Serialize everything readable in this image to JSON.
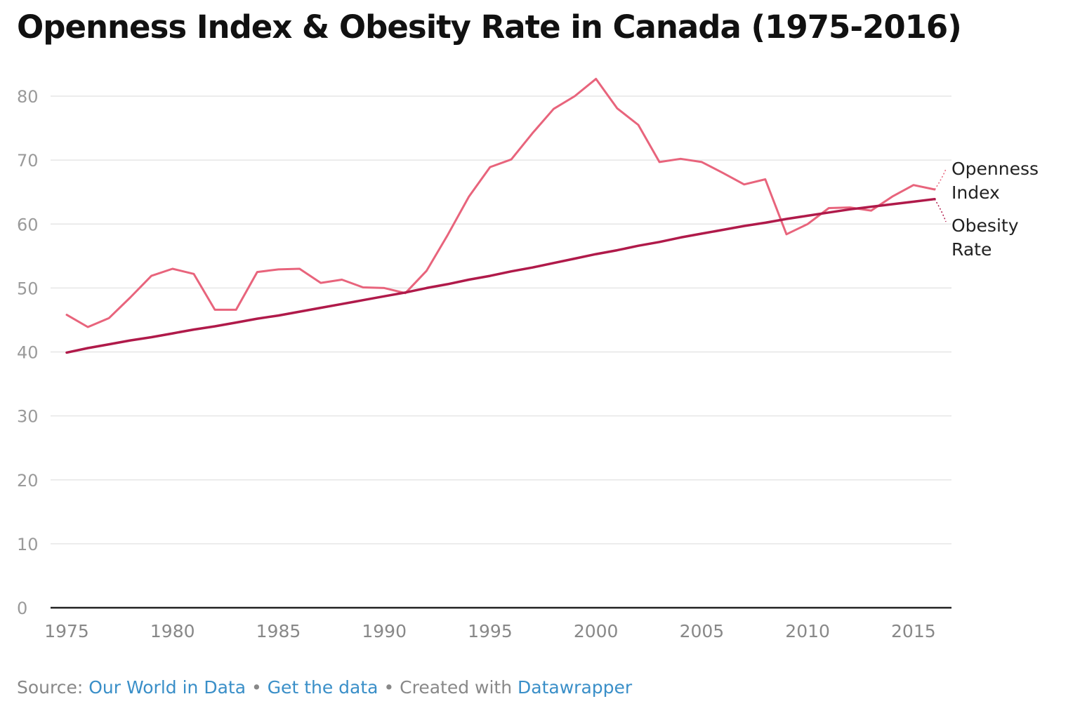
{
  "page": {
    "title": "Openness Index & Obesity Rate in Canada (1975-2016)"
  },
  "footer": {
    "source_label": "Source:",
    "source_link": "Our World in Data",
    "separator": "•",
    "data_link": "Get the data",
    "created_label": "Created with",
    "tool_link": "Datawrapper"
  },
  "colors": {
    "openness": "#e8647c",
    "obesity": "#b01a4a",
    "grid": "#e6e6e6",
    "axis": "#222222",
    "tick_text": "#9a9a9a",
    "link": "#3a8fc8"
  },
  "chart_data": {
    "type": "line",
    "title": "Openness Index & Obesity Rate in Canada (1975-2016)",
    "xlabel": "",
    "ylabel": "",
    "xlim": [
      1975,
      2016
    ],
    "ylim": [
      0,
      80
    ],
    "x_ticks": [
      1975,
      1980,
      1985,
      1990,
      1995,
      2000,
      2005,
      2010,
      2015
    ],
    "y_ticks": [
      0,
      10,
      20,
      30,
      40,
      50,
      60,
      70,
      80
    ],
    "grid": true,
    "legend": "direct labels at right end of lines",
    "x": [
      1975,
      1976,
      1977,
      1978,
      1979,
      1980,
      1981,
      1982,
      1983,
      1984,
      1985,
      1986,
      1987,
      1988,
      1989,
      1990,
      1991,
      1992,
      1993,
      1994,
      1995,
      1996,
      1997,
      1998,
      1999,
      2000,
      2001,
      2002,
      2003,
      2004,
      2005,
      2006,
      2007,
      2008,
      2009,
      2010,
      2011,
      2012,
      2013,
      2014,
      2015,
      2016
    ],
    "series": [
      {
        "name": "Openness Index",
        "label_lines": [
          "Openness",
          "Index"
        ],
        "values": [
          45.8,
          43.9,
          45.3,
          48.5,
          51.9,
          53.0,
          52.2,
          46.6,
          46.6,
          52.5,
          52.9,
          53.0,
          50.8,
          51.3,
          50.1,
          50.0,
          49.2,
          52.7,
          58.3,
          64.3,
          68.9,
          70.1,
          74.2,
          78.0,
          80.0,
          82.7,
          78.1,
          75.5,
          69.7,
          70.2,
          69.7,
          68.0,
          66.2,
          67.0,
          58.4,
          60.0,
          62.5,
          62.6,
          62.1,
          64.3,
          66.1,
          65.4
        ]
      },
      {
        "name": "Obesity Rate",
        "label_lines": [
          "Obesity",
          "Rate"
        ],
        "values": [
          39.9,
          40.6,
          41.2,
          41.8,
          42.3,
          42.9,
          43.5,
          44.0,
          44.6,
          45.2,
          45.7,
          46.3,
          46.9,
          47.5,
          48.1,
          48.7,
          49.3,
          50.0,
          50.6,
          51.3,
          51.9,
          52.6,
          53.2,
          53.9,
          54.6,
          55.3,
          55.9,
          56.6,
          57.2,
          57.9,
          58.5,
          59.1,
          59.7,
          60.2,
          60.8,
          61.3,
          61.8,
          62.3,
          62.7,
          63.1,
          63.5,
          63.9
        ]
      }
    ]
  }
}
